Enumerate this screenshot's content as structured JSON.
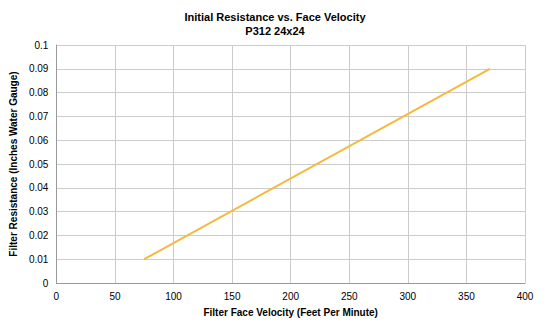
{
  "chart_data": {
    "type": "line",
    "title": "Initial Resistance vs. Face Velocity",
    "subtitle": "P312 24x24",
    "x_label": "Filter Face Velocity (Feet Per Minute)",
    "y_label": "Filter Resistance (Inches Water Gauge)",
    "series": [
      {
        "name": "P312 24x24",
        "color": "#f5b93e",
        "x": [
          75,
          370
        ],
        "values": [
          0.01,
          0.09
        ]
      }
    ],
    "xlim": [
      0,
      400
    ],
    "xticks": [
      0,
      50,
      100,
      150,
      200,
      250,
      300,
      350,
      400
    ],
    "ylim": [
      0,
      0.1
    ],
    "yticks": [
      0,
      0.01,
      0.02,
      0.03,
      0.04,
      0.05,
      0.06,
      0.07,
      0.08,
      0.09,
      0.1
    ],
    "grid": true
  }
}
